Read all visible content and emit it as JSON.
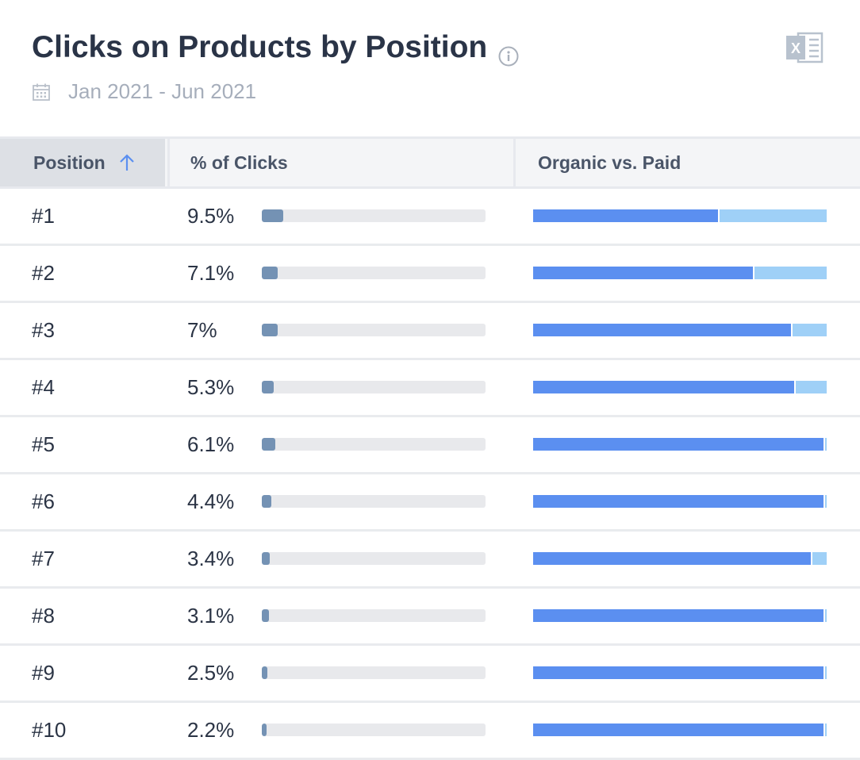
{
  "header": {
    "title": "Clicks on Products by Position",
    "date_range": "Jan 2021 - Jun 2021",
    "info_icon": "info-icon",
    "export_icon": "excel-icon",
    "calendar_icon": "calendar-icon"
  },
  "table": {
    "columns": {
      "position": "Position",
      "clicks": "% of Clicks",
      "organic_vs_paid": "Organic vs. Paid"
    },
    "sort": "position-ascending",
    "rows": [
      {
        "position": "#1",
        "clicks_label": "9.5%",
        "clicks_pct": 9.5,
        "organic_share": 0.635
      },
      {
        "position": "#2",
        "clicks_label": "7.1%",
        "clicks_pct": 7.1,
        "organic_share": 0.755
      },
      {
        "position": "#3",
        "clicks_label": "7%",
        "clicks_pct": 7.0,
        "organic_share": 0.885
      },
      {
        "position": "#4",
        "clicks_label": "5.3%",
        "clicks_pct": 5.3,
        "organic_share": 0.895
      },
      {
        "position": "#5",
        "clicks_label": "6.1%",
        "clicks_pct": 6.1,
        "organic_share": 0.995
      },
      {
        "position": "#6",
        "clicks_label": "4.4%",
        "clicks_pct": 4.4,
        "organic_share": 0.995
      },
      {
        "position": "#7",
        "clicks_label": "3.4%",
        "clicks_pct": 3.4,
        "organic_share": 0.95
      },
      {
        "position": "#8",
        "clicks_label": "3.1%",
        "clicks_pct": 3.1,
        "organic_share": 0.995
      },
      {
        "position": "#9",
        "clicks_label": "2.5%",
        "clicks_pct": 2.5,
        "organic_share": 0.995
      },
      {
        "position": "#10",
        "clicks_label": "2.2%",
        "clicks_pct": 2.2,
        "organic_share": 0.995
      }
    ]
  },
  "colors": {
    "clicks_fill": "#7492b4",
    "organic": "#5b8ff0",
    "paid": "#9fd0f7"
  }
}
